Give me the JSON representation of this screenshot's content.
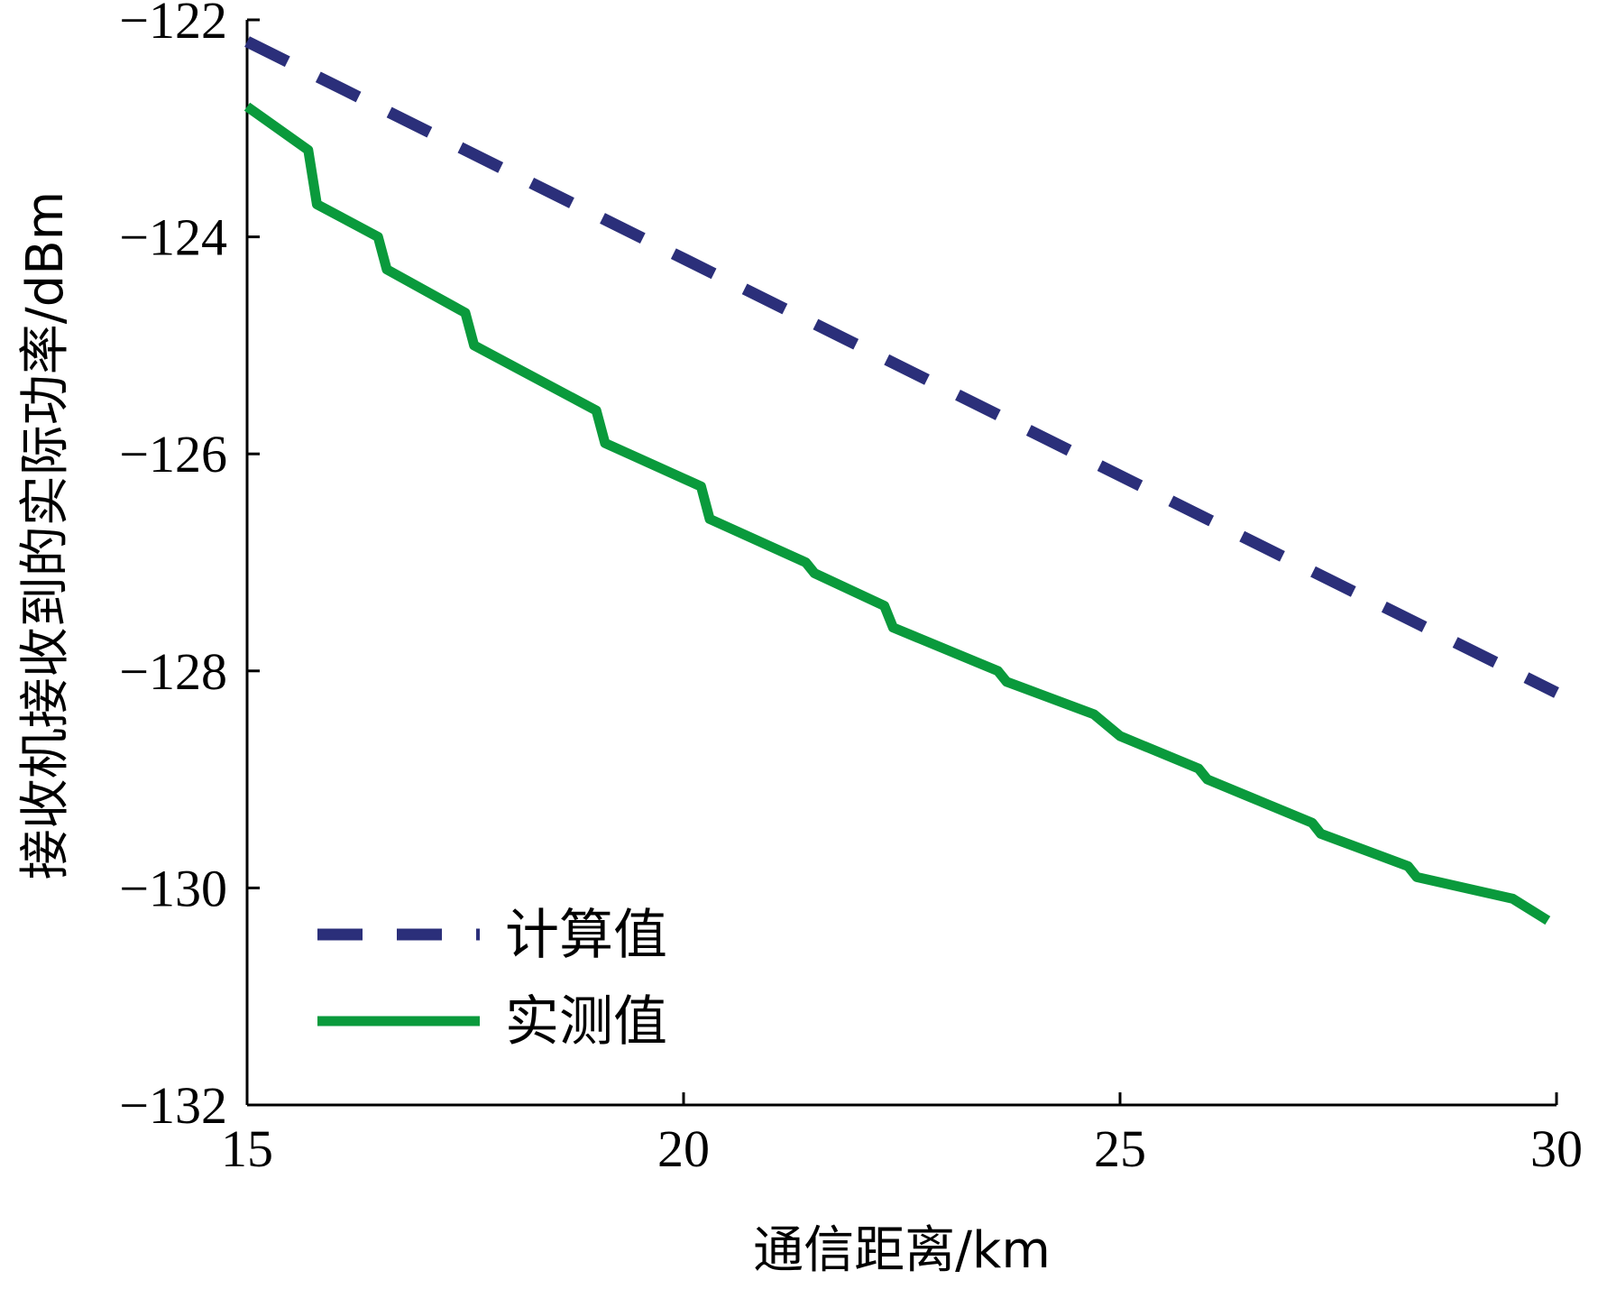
{
  "chart_data": {
    "type": "line",
    "title": "",
    "xlabel": "通信距离/km",
    "ylabel": "接收机接收到的实际功率/dBm",
    "xlim": [
      15,
      30
    ],
    "ylim": [
      -132,
      -122
    ],
    "x_ticks": [
      15,
      20,
      25,
      30
    ],
    "y_ticks": [
      -122,
      -124,
      -126,
      -128,
      -130,
      -132
    ],
    "x_tick_labels": [
      "15",
      "20",
      "25",
      "30"
    ],
    "y_tick_labels": [
      "−122",
      "−124",
      "−126",
      "−128",
      "−130",
      "−132"
    ],
    "grid": false,
    "legend_position": "bottom-left",
    "series": [
      {
        "name": "计算值",
        "style": "dashed",
        "color": "#2b2f7a",
        "x": [
          15,
          30
        ],
        "y": [
          -122.2,
          -128.2
        ]
      },
      {
        "name": "实测值",
        "style": "solid",
        "color": "#0a9a3c",
        "x": [
          15,
          15.7,
          15.8,
          16.5,
          16.6,
          17.5,
          17.6,
          19.0,
          19.1,
          20.2,
          20.3,
          21.4,
          21.5,
          22.3,
          22.4,
          23.6,
          23.7,
          24.7,
          25.0,
          25.9,
          26.0,
          27.2,
          27.3,
          28.3,
          28.4,
          29.5,
          29.9
        ],
        "y": [
          -122.8,
          -123.2,
          -123.7,
          -124.0,
          -124.3,
          -124.7,
          -125.0,
          -125.6,
          -125.9,
          -126.3,
          -126.6,
          -127.0,
          -127.1,
          -127.4,
          -127.6,
          -128.0,
          -128.1,
          -128.4,
          -128.6,
          -128.9,
          -129.0,
          -129.4,
          -129.5,
          -129.8,
          -129.9,
          -130.1,
          -130.3
        ]
      }
    ]
  }
}
